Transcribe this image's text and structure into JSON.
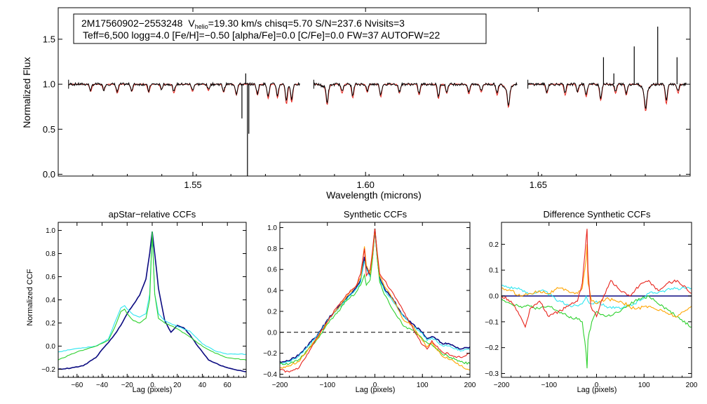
{
  "colors": {
    "observed": "#000000",
    "model": "#e8241c",
    "navy": "#0a0a80",
    "cyan": "#2ee6f0",
    "green": "#2ed12e",
    "orange": "#ffa500",
    "red": "#e8241c",
    "dashed": "#000000"
  },
  "legend_box": {
    "line1_star": "2M17560902−2553248",
    "line1_v": "V",
    "line1_v_sub": "helio",
    "line1_rest": "=19.30 km/s  chisq=5.70  S/N=237.6  Nvisits=3",
    "line2": "Teff=6,500 logg=4.0 [Fe/H]=−0.50 [alpha/Fe]=0.0 [C/Fe]=0.0 FW=37 AUTOFW=22"
  },
  "chart_data": [
    {
      "id": "spectrum",
      "type": "line",
      "title": "",
      "xlabel": "Wavelength (microns)",
      "ylabel": "Normalized Flux",
      "xlim": [
        1.511,
        1.694
      ],
      "ylim": [
        -0.02,
        1.85
      ],
      "xticks": [
        1.55,
        1.6,
        1.65
      ],
      "xtick_labels": [
        "1.55",
        "1.60",
        "1.65"
      ],
      "yticks": [
        0.0,
        0.5,
        1.0,
        1.5
      ],
      "ytick_labels": [
        "0.0",
        "0.5",
        "1.0",
        "1.5"
      ],
      "segments": [
        [
          1.514,
          1.581
        ],
        [
          1.585,
          1.644
        ],
        [
          1.647,
          1.693
        ]
      ],
      "series": [
        {
          "name": "observed",
          "color_key": "observed"
        },
        {
          "name": "model",
          "color_key": "model"
        }
      ],
      "absorption_lines": [
        {
          "x": 1.5204,
          "d": 0.08
        },
        {
          "x": 1.5242,
          "d": 0.07
        },
        {
          "x": 1.5281,
          "d": 0.1
        },
        {
          "x": 1.5323,
          "d": 0.08
        },
        {
          "x": 1.5372,
          "d": 0.09
        },
        {
          "x": 1.5409,
          "d": 0.06
        },
        {
          "x": 1.5445,
          "d": 0.1
        },
        {
          "x": 1.5499,
          "d": 0.08
        },
        {
          "x": 1.5545,
          "d": 0.07
        },
        {
          "x": 1.5589,
          "d": 0.09
        },
        {
          "x": 1.5626,
          "d": 0.12
        },
        {
          "x": 1.5687,
          "d": 0.12
        },
        {
          "x": 1.5718,
          "d": 0.16
        },
        {
          "x": 1.5745,
          "d": 0.15
        },
        {
          "x": 1.5771,
          "d": 0.22
        },
        {
          "x": 1.5786,
          "d": 0.2
        },
        {
          "x": 1.5889,
          "d": 0.2
        },
        {
          "x": 1.5932,
          "d": 0.1
        },
        {
          "x": 1.5963,
          "d": 0.15
        },
        {
          "x": 1.6005,
          "d": 0.09
        },
        {
          "x": 1.6044,
          "d": 0.14
        },
        {
          "x": 1.6098,
          "d": 0.1
        },
        {
          "x": 1.6155,
          "d": 0.12
        },
        {
          "x": 1.6211,
          "d": 0.16
        },
        {
          "x": 1.6235,
          "d": 0.1
        },
        {
          "x": 1.6299,
          "d": 0.11
        },
        {
          "x": 1.6335,
          "d": 0.09
        },
        {
          "x": 1.6381,
          "d": 0.12
        },
        {
          "x": 1.6414,
          "d": 0.2
        },
        {
          "x": 1.6525,
          "d": 0.1
        },
        {
          "x": 1.6578,
          "d": 0.12
        },
        {
          "x": 1.6614,
          "d": 0.09
        },
        {
          "x": 1.6639,
          "d": 0.14
        },
        {
          "x": 1.6681,
          "d": 0.18
        },
        {
          "x": 1.6724,
          "d": 0.1
        },
        {
          "x": 1.6755,
          "d": 0.12
        },
        {
          "x": 1.6811,
          "d": 0.22
        },
        {
          "x": 1.6871,
          "d": 0.22
        },
        {
          "x": 1.6905,
          "d": 0.1
        }
      ],
      "bad_pixels": [
        {
          "x": 1.5642,
          "y": 0.62
        },
        {
          "x": 1.5653,
          "y": 1.12
        },
        {
          "x": 1.5658,
          "y": -0.02
        },
        {
          "x": 1.5662,
          "y": 0.45
        }
      ],
      "emission_spikes": [
        {
          "x": 1.6689,
          "y": 1.3
        },
        {
          "x": 1.6719,
          "y": 1.12
        },
        {
          "x": 1.6778,
          "y": 1.42
        },
        {
          "x": 1.6846,
          "y": 1.64
        },
        {
          "x": 1.6902,
          "y": 1.3
        }
      ]
    },
    {
      "id": "apstar",
      "type": "line",
      "title": "apStar−relative CCFs",
      "xlabel": "Lag (pixels)",
      "ylabel": "Normalized CCF",
      "xlim": [
        -75,
        75
      ],
      "ylim": [
        -0.27,
        1.07
      ],
      "xticks": [
        -60,
        -40,
        -20,
        0,
        20,
        40,
        60
      ],
      "xtick_labels": [
        "−60",
        "−40",
        "−20",
        "0",
        "20",
        "40",
        "60"
      ],
      "yticks": [
        -0.2,
        0.0,
        0.2,
        0.4,
        0.6,
        0.8,
        1.0
      ],
      "ytick_labels": [
        "−0.2",
        "0.0",
        "0.2",
        "0.4",
        "0.6",
        "0.8",
        "1.0"
      ],
      "series": [
        {
          "name": "navy",
          "color_key": "navy",
          "x": [
            -75,
            -65,
            -55,
            -45,
            -40,
            -35,
            -30,
            -25,
            -20,
            -15,
            -10,
            -5,
            -2,
            0,
            2,
            5,
            10,
            15,
            20,
            25,
            30,
            35,
            40,
            45,
            55,
            65,
            75
          ],
          "y": [
            -0.2,
            -0.19,
            -0.17,
            -0.1,
            -0.03,
            0.03,
            0.1,
            0.18,
            0.28,
            0.36,
            0.44,
            0.58,
            0.8,
            0.99,
            0.8,
            0.5,
            0.22,
            0.12,
            0.18,
            0.16,
            0.1,
            0.02,
            -0.05,
            -0.12,
            -0.17,
            -0.2,
            -0.22
          ]
        },
        {
          "name": "cyan",
          "color_key": "cyan",
          "x": [
            -75,
            -60,
            -45,
            -35,
            -30,
            -25,
            -22,
            -20,
            -15,
            -10,
            -5,
            -2,
            0,
            2,
            5,
            10,
            20,
            30,
            40,
            50,
            60,
            75
          ],
          "y": [
            -0.05,
            -0.02,
            0.0,
            0.06,
            0.2,
            0.33,
            0.35,
            0.32,
            0.27,
            0.25,
            0.28,
            0.45,
            0.99,
            0.45,
            0.28,
            0.22,
            0.17,
            0.13,
            0.02,
            -0.04,
            -0.07,
            -0.07
          ]
        },
        {
          "name": "green",
          "color_key": "green",
          "x": [
            -75,
            -60,
            -45,
            -35,
            -30,
            -25,
            -22,
            -20,
            -15,
            -10,
            -5,
            -2,
            0,
            2,
            5,
            10,
            20,
            30,
            40,
            50,
            60,
            75
          ],
          "y": [
            -0.12,
            -0.05,
            0.0,
            0.05,
            0.16,
            0.3,
            0.32,
            0.28,
            0.22,
            0.2,
            0.24,
            0.4,
            0.99,
            0.45,
            0.24,
            0.2,
            0.15,
            0.08,
            0.0,
            -0.06,
            -0.1,
            -0.12
          ]
        }
      ]
    },
    {
      "id": "synthetic",
      "type": "line",
      "title": "Synthetic CCFs",
      "xlabel": "Lag (pixels)",
      "ylabel": "",
      "xlim": [
        -200,
        200
      ],
      "ylim": [
        -0.43,
        1.05
      ],
      "xticks": [
        -200,
        -100,
        0,
        100,
        200
      ],
      "xtick_labels": [
        "−200",
        "−100",
        "0",
        "100",
        "200"
      ],
      "yticks": [
        -0.4,
        -0.2,
        0.0,
        0.2,
        0.4,
        0.6,
        0.8,
        1.0
      ],
      "ytick_labels": [
        "−0.4",
        "−0.2",
        "0.0",
        "0.2",
        "0.4",
        "0.6",
        "0.8",
        "1.0"
      ],
      "hline": 0.0,
      "series": [
        {
          "name": "navy",
          "color_key": "navy",
          "x": [
            -200,
            -180,
            -160,
            -140,
            -120,
            -100,
            -80,
            -60,
            -40,
            -30,
            -22,
            -18,
            -10,
            -5,
            0,
            5,
            10,
            20,
            30,
            40,
            60,
            80,
            100,
            110,
            120,
            140,
            160,
            180,
            200
          ],
          "y": [
            -0.28,
            -0.27,
            -0.22,
            -0.12,
            -0.02,
            0.12,
            0.22,
            0.32,
            0.42,
            0.5,
            0.72,
            0.62,
            0.55,
            0.72,
            0.99,
            0.72,
            0.52,
            0.42,
            0.36,
            0.3,
            0.16,
            0.08,
            0.0,
            -0.06,
            -0.04,
            -0.1,
            -0.12,
            -0.16,
            -0.14
          ]
        },
        {
          "name": "cyan",
          "color_key": "cyan",
          "x": [
            -200,
            -180,
            -160,
            -140,
            -120,
            -100,
            -80,
            -60,
            -40,
            -30,
            -22,
            -18,
            -10,
            -5,
            0,
            5,
            10,
            20,
            30,
            40,
            60,
            80,
            100,
            110,
            120,
            140,
            160,
            180,
            200
          ],
          "y": [
            -0.3,
            -0.28,
            -0.23,
            -0.13,
            -0.03,
            0.11,
            0.21,
            0.31,
            0.41,
            0.48,
            0.68,
            0.6,
            0.53,
            0.7,
            0.99,
            0.7,
            0.5,
            0.4,
            0.34,
            0.28,
            0.15,
            0.06,
            -0.01,
            -0.08,
            -0.05,
            -0.12,
            -0.14,
            -0.18,
            -0.16
          ]
        },
        {
          "name": "green",
          "color_key": "green",
          "x": [
            -200,
            -180,
            -160,
            -140,
            -120,
            -100,
            -80,
            -60,
            -40,
            -30,
            -22,
            -18,
            -10,
            -5,
            0,
            5,
            10,
            20,
            30,
            40,
            60,
            80,
            100,
            110,
            120,
            140,
            160,
            180,
            200
          ],
          "y": [
            -0.3,
            -0.3,
            -0.26,
            -0.16,
            -0.06,
            0.08,
            0.18,
            0.3,
            0.38,
            0.45,
            0.55,
            0.45,
            0.5,
            0.7,
            0.99,
            0.7,
            0.48,
            0.36,
            0.28,
            0.2,
            0.06,
            0.02,
            -0.06,
            -0.1,
            -0.12,
            -0.2,
            -0.24,
            -0.28,
            -0.3
          ]
        },
        {
          "name": "orange",
          "color_key": "orange",
          "x": [
            -200,
            -180,
            -160,
            -140,
            -120,
            -100,
            -80,
            -60,
            -40,
            -30,
            -22,
            -18,
            -10,
            -5,
            0,
            5,
            10,
            20,
            30,
            40,
            60,
            80,
            100,
            110,
            120,
            140,
            160,
            180,
            200
          ],
          "y": [
            -0.34,
            -0.32,
            -0.28,
            -0.16,
            -0.05,
            0.1,
            0.22,
            0.34,
            0.44,
            0.52,
            0.82,
            0.64,
            0.56,
            0.74,
            0.99,
            0.74,
            0.54,
            0.44,
            0.38,
            0.3,
            0.12,
            0.06,
            -0.08,
            -0.14,
            -0.1,
            -0.22,
            -0.26,
            -0.32,
            -0.36
          ]
        },
        {
          "name": "red",
          "color_key": "red",
          "x": [
            -200,
            -180,
            -160,
            -140,
            -120,
            -100,
            -80,
            -60,
            -40,
            -30,
            -22,
            -18,
            -10,
            -5,
            0,
            5,
            10,
            20,
            30,
            40,
            60,
            80,
            100,
            110,
            120,
            140,
            160,
            180,
            200
          ],
          "y": [
            -0.36,
            -0.38,
            -0.34,
            -0.2,
            -0.04,
            0.1,
            0.24,
            0.36,
            0.44,
            0.56,
            0.8,
            0.54,
            0.6,
            0.78,
            0.99,
            0.76,
            0.56,
            0.5,
            0.42,
            0.36,
            0.2,
            0.04,
            -0.12,
            -0.16,
            -0.08,
            -0.18,
            -0.22,
            -0.24,
            -0.2
          ]
        }
      ]
    },
    {
      "id": "difference",
      "type": "line",
      "title": "Difference Synthetic CCFs",
      "xlabel": "Lag (pixels)",
      "ylabel": "",
      "xlim": [
        -200,
        200
      ],
      "ylim": [
        -0.315,
        0.285
      ],
      "xticks": [
        -200,
        -100,
        0,
        100,
        200
      ],
      "xtick_labels": [
        "−200",
        "−100",
        "0",
        "100",
        "200"
      ],
      "yticks": [
        -0.3,
        -0.2,
        -0.1,
        0.0,
        0.1,
        0.2
      ],
      "ytick_labels": [
        "−0.3",
        "−0.2",
        "−0.1",
        "0.0",
        "0.1",
        "0.2"
      ],
      "series": [
        {
          "name": "navy",
          "color_key": "navy",
          "x": [
            -200,
            200
          ],
          "y": [
            0.0,
            0.0
          ]
        },
        {
          "name": "cyan",
          "color_key": "cyan",
          "x": [
            -200,
            -170,
            -140,
            -110,
            -80,
            -50,
            -30,
            -22,
            -18,
            -10,
            0,
            20,
            50,
            80,
            110,
            140,
            170,
            200
          ],
          "y": [
            0.04,
            0.03,
            0.01,
            0.02,
            -0.02,
            -0.04,
            -0.03,
            0.0,
            -0.02,
            -0.03,
            -0.02,
            -0.04,
            -0.05,
            -0.03,
            0.01,
            0.02,
            0.03,
            0.03
          ]
        },
        {
          "name": "green",
          "color_key": "green",
          "x": [
            -200,
            -180,
            -160,
            -140,
            -120,
            -100,
            -80,
            -60,
            -40,
            -30,
            -22,
            -20,
            -18,
            -10,
            0,
            20,
            50,
            80,
            110,
            140,
            170,
            200
          ],
          "y": [
            -0.01,
            -0.03,
            -0.04,
            -0.04,
            -0.05,
            -0.04,
            -0.06,
            -0.08,
            -0.09,
            -0.1,
            -0.22,
            -0.28,
            -0.17,
            -0.1,
            -0.06,
            -0.08,
            -0.06,
            -0.02,
            0.0,
            -0.04,
            -0.08,
            -0.12
          ]
        },
        {
          "name": "orange",
          "color_key": "orange",
          "x": [
            -200,
            -180,
            -160,
            -140,
            -120,
            -100,
            -80,
            -60,
            -40,
            -30,
            -22,
            -20,
            -18,
            -10,
            0,
            20,
            50,
            80,
            110,
            140,
            170,
            200
          ],
          "y": [
            0.03,
            0.02,
            0.0,
            0.01,
            0.02,
            0.01,
            0.03,
            0.02,
            0.01,
            0.03,
            0.14,
            0.2,
            0.05,
            -0.02,
            -0.03,
            -0.01,
            -0.02,
            -0.05,
            -0.04,
            -0.06,
            -0.08,
            -0.04
          ]
        },
        {
          "name": "red",
          "color_key": "red",
          "x": [
            -200,
            -180,
            -160,
            -150,
            -140,
            -120,
            -100,
            -80,
            -60,
            -40,
            -30,
            -22,
            -20,
            -18,
            -12,
            -5,
            0,
            10,
            30,
            50,
            70,
            90,
            110,
            130,
            150,
            170,
            200
          ],
          "y": [
            0.0,
            -0.02,
            -0.08,
            -0.12,
            -0.05,
            -0.02,
            -0.08,
            -0.06,
            -0.04,
            -0.02,
            0.05,
            0.22,
            0.26,
            0.1,
            -0.04,
            -0.06,
            -0.08,
            -0.02,
            0.06,
            0.02,
            0.0,
            0.04,
            0.06,
            0.02,
            0.05,
            0.06,
            0.01
          ]
        }
      ]
    }
  ]
}
